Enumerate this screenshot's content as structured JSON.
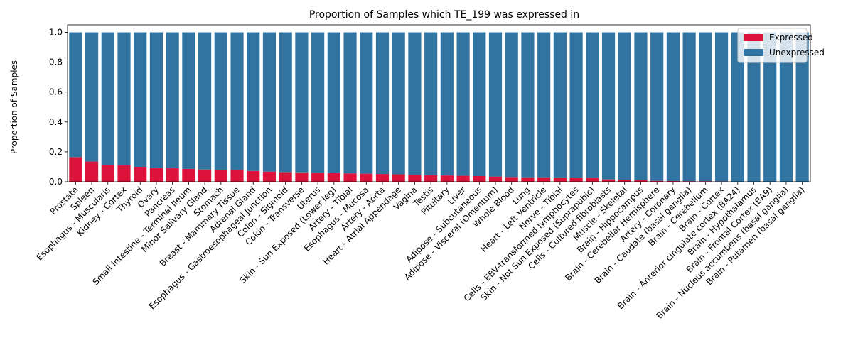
{
  "chart_data": {
    "type": "bar",
    "stacked": true,
    "title": "Proportion of Samples which TE_199 was expressed in",
    "xlabel": "",
    "ylabel": "Proportion of Samples",
    "ylim": [
      0,
      1.05
    ],
    "yticks": [
      "0.0",
      "0.2",
      "0.4",
      "0.6",
      "0.8",
      "1.0"
    ],
    "grid": false,
    "legend_position": "top-right",
    "categories": [
      "Prostate",
      "Spleen",
      "Esophagus - Muscularis",
      "Kidney - Cortex",
      "Thyroid",
      "Ovary",
      "Pancreas",
      "Small Intestine - Terminal Ileum",
      "Minor Salivary Gland",
      "Stomach",
      "Breast - Mammary Tissue",
      "Adrenal Gland",
      "Esophagus - Gastroesophageal Junction",
      "Colon - Sigmoid",
      "Colon - Transverse",
      "Uterus",
      "Skin - Sun Exposed (Lower leg)",
      "Artery - Tibial",
      "Esophagus - Mucosa",
      "Artery - Aorta",
      "Heart - Atrial Appendage",
      "Vagina",
      "Testis",
      "Pituitary",
      "Liver",
      "Adipose - Subcutaneous",
      "Adipose - Visceral (Omentum)",
      "Whole Blood",
      "Lung",
      "Heart - Left Ventricle",
      "Nerve - Tibial",
      "Cells - EBV-transformed lymphocytes",
      "Skin - Not Sun Exposed (Suprapubic)",
      "Cells - Cultured fibroblasts",
      "Muscle - Skeletal",
      "Brain - Hippocampus",
      "Brain - Cerebellar Hemisphere",
      "Artery - Coronary",
      "Brain - Caudate (basal ganglia)",
      "Brain - Cerebellum",
      "Brain - Cortex",
      "Brain - Anterior cingulate cortex (BA24)",
      "Brain - Hypothalamus",
      "Brain - Frontal Cortex (BA9)",
      "Brain - Nucleus accumbens (basal ganglia)",
      "Brain - Putamen (basal ganglia)"
    ],
    "series": [
      {
        "name": "Expressed",
        "color": "#dc143c",
        "values": [
          0.165,
          0.135,
          0.112,
          0.11,
          0.1,
          0.092,
          0.09,
          0.086,
          0.082,
          0.08,
          0.078,
          0.072,
          0.068,
          0.065,
          0.063,
          0.06,
          0.058,
          0.056,
          0.054,
          0.052,
          0.05,
          0.046,
          0.044,
          0.042,
          0.04,
          0.038,
          0.035,
          0.032,
          0.03,
          0.03,
          0.029,
          0.028,
          0.027,
          0.016,
          0.014,
          0.012,
          0.006,
          0.005,
          0.004,
          0.004,
          0.003,
          0.0,
          0.0,
          0.0,
          0.0,
          0.0
        ]
      },
      {
        "name": "Unexpressed",
        "color": "#3274a1",
        "values": [
          0.835,
          0.865,
          0.888,
          0.89,
          0.9,
          0.908,
          0.91,
          0.914,
          0.918,
          0.92,
          0.922,
          0.928,
          0.932,
          0.935,
          0.937,
          0.94,
          0.942,
          0.944,
          0.946,
          0.948,
          0.95,
          0.954,
          0.956,
          0.958,
          0.96,
          0.962,
          0.965,
          0.968,
          0.97,
          0.97,
          0.971,
          0.972,
          0.973,
          0.984,
          0.986,
          0.988,
          0.994,
          0.995,
          0.996,
          0.996,
          0.997,
          1.0,
          1.0,
          1.0,
          1.0,
          1.0
        ]
      }
    ]
  }
}
